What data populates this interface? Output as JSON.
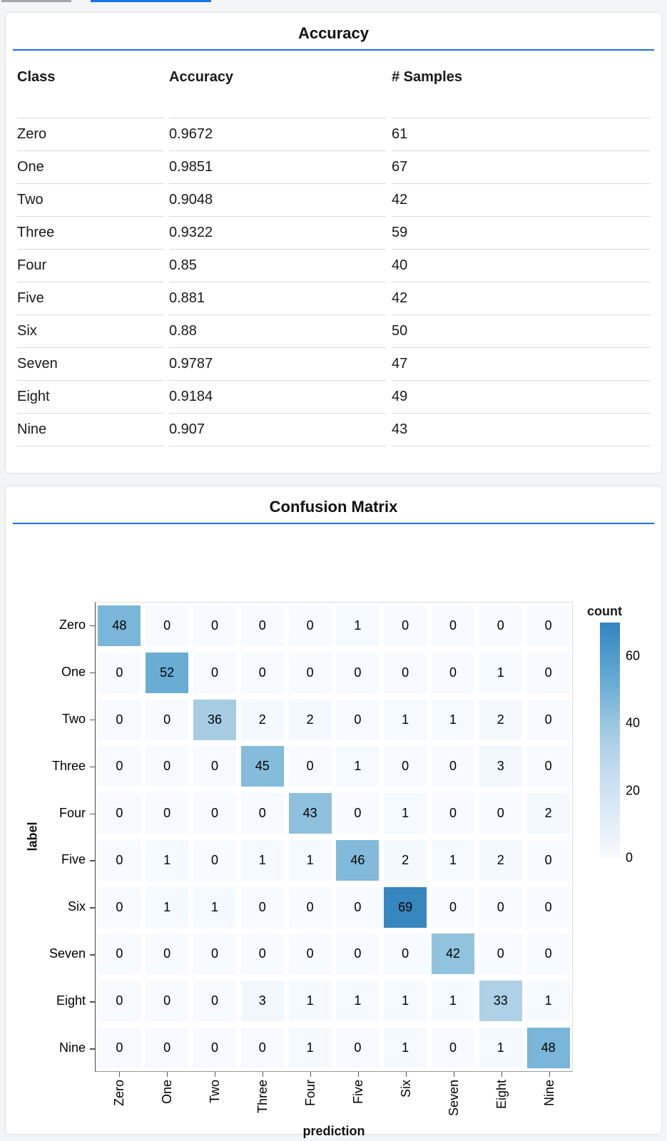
{
  "top_bars": {
    "inactive_color": "#a6a6a6",
    "active_color": "#1a73e8"
  },
  "accent_rule_color": "#1d70e8",
  "chart_data": [
    {
      "type": "table",
      "title": "Accuracy",
      "columns": [
        "Class",
        "Accuracy",
        "# Samples"
      ],
      "rows": [
        [
          "Zero",
          "0.9672",
          "61"
        ],
        [
          "One",
          "0.9851",
          "67"
        ],
        [
          "Two",
          "0.9048",
          "42"
        ],
        [
          "Three",
          "0.9322",
          "59"
        ],
        [
          "Four",
          "0.85",
          "40"
        ],
        [
          "Five",
          "0.881",
          "42"
        ],
        [
          "Six",
          "0.88",
          "50"
        ],
        [
          "Seven",
          "0.9787",
          "47"
        ],
        [
          "Eight",
          "0.9184",
          "49"
        ],
        [
          "Nine",
          "0.907",
          "43"
        ]
      ]
    },
    {
      "type": "heatmap",
      "title": "Confusion Matrix",
      "xlabel": "prediction",
      "ylabel": "label",
      "x_categories": [
        "Zero",
        "One",
        "Two",
        "Three",
        "Four",
        "Five",
        "Six",
        "Seven",
        "Eight",
        "Nine"
      ],
      "y_categories": [
        "Zero",
        "One",
        "Two",
        "Three",
        "Four",
        "Five",
        "Six",
        "Seven",
        "Eight",
        "Nine"
      ],
      "matrix": [
        [
          48,
          0,
          0,
          0,
          0,
          1,
          0,
          0,
          0,
          0
        ],
        [
          0,
          52,
          0,
          0,
          0,
          0,
          0,
          0,
          1,
          0
        ],
        [
          0,
          0,
          36,
          2,
          2,
          0,
          1,
          1,
          2,
          0
        ],
        [
          0,
          0,
          0,
          45,
          0,
          1,
          0,
          0,
          3,
          0
        ],
        [
          0,
          0,
          0,
          0,
          43,
          0,
          1,
          0,
          0,
          2
        ],
        [
          0,
          1,
          0,
          1,
          1,
          46,
          2,
          1,
          2,
          0
        ],
        [
          0,
          1,
          1,
          0,
          0,
          0,
          69,
          0,
          0,
          0
        ],
        [
          0,
          0,
          0,
          0,
          0,
          0,
          0,
          42,
          0,
          0
        ],
        [
          0,
          0,
          0,
          3,
          1,
          1,
          1,
          1,
          33,
          1
        ],
        [
          0,
          0,
          0,
          0,
          1,
          0,
          1,
          0,
          1,
          48
        ]
      ],
      "legend": {
        "title": "count",
        "ticks": [
          "60",
          "40",
          "20",
          "0"
        ],
        "tick_values": [
          60,
          40,
          20,
          0
        ],
        "domain": [
          0,
          70
        ]
      },
      "colors": {
        "ramp_low": "#f7fbff",
        "ramp_high": "#3384bf"
      }
    }
  ]
}
